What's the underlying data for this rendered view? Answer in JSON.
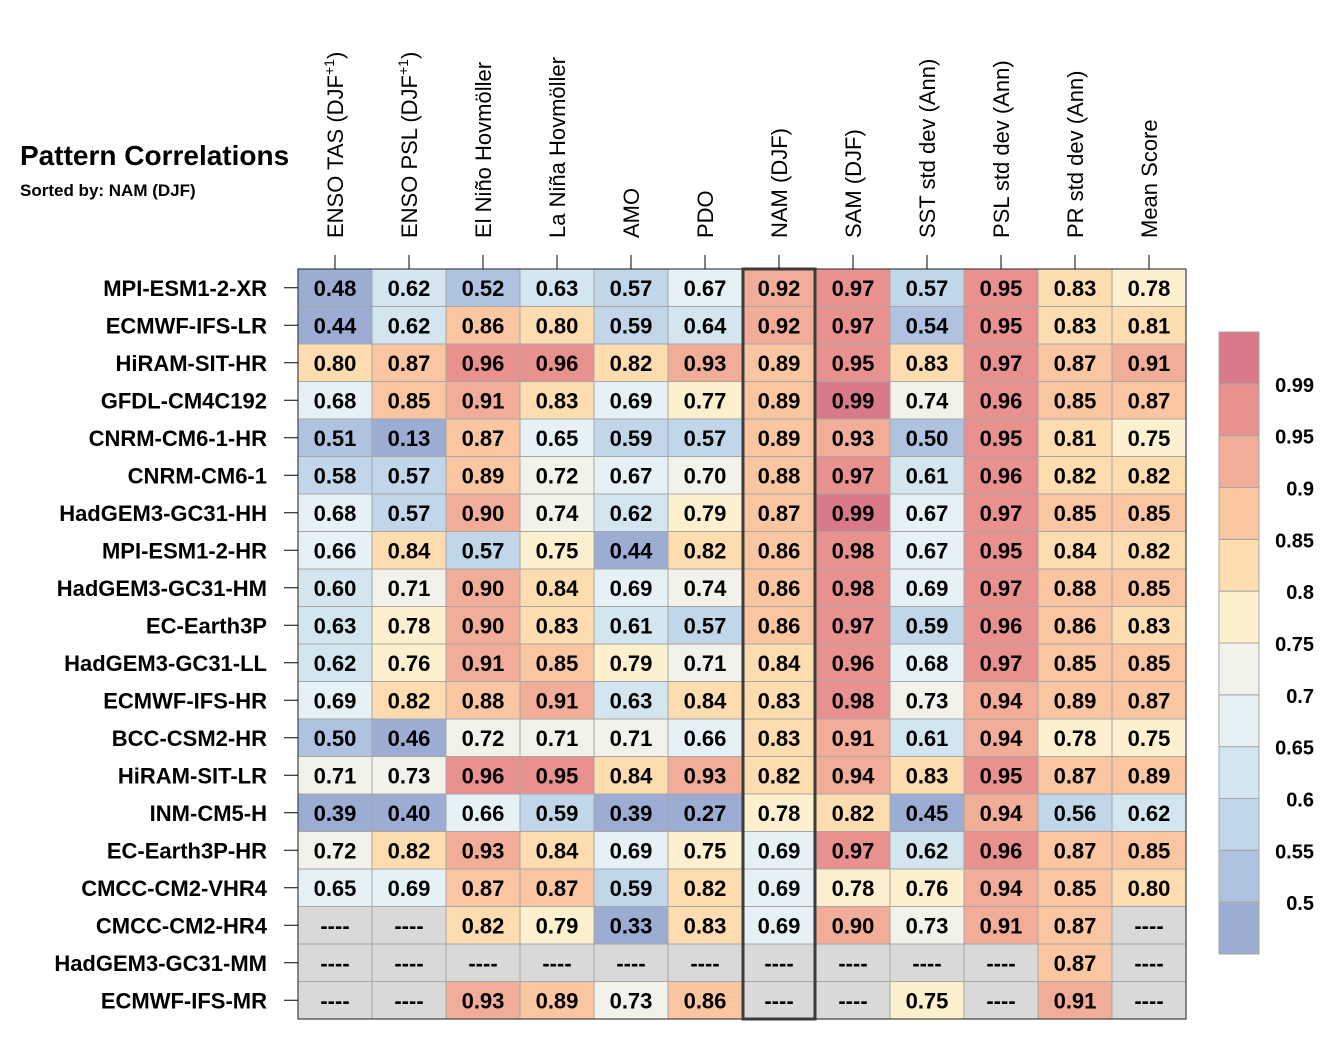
{
  "title": "Pattern Correlations",
  "subtitle": "Sorted by: NAM (DJF)",
  "chart_data": {
    "type": "heatmap",
    "title": "Pattern Correlations",
    "subtitle": "Sorted by: NAM (DJF)",
    "sorted_by": "NAM (DJF)",
    "highlighted_column": "NAM (DJF)",
    "missing_label": "----",
    "columns": [
      {
        "main": "ENSO TAS (DJF",
        "sup": "+1",
        "end": ")"
      },
      {
        "main": "ENSO PSL (DJF",
        "sup": "+1",
        "end": ")"
      },
      {
        "main": "El Niño Hovmöller",
        "sup": "",
        "end": ""
      },
      {
        "main": "La Niña Hovmöller",
        "sup": "",
        "end": ""
      },
      {
        "main": "AMO",
        "sup": "",
        "end": ""
      },
      {
        "main": "PDO",
        "sup": "",
        "end": ""
      },
      {
        "main": "NAM (DJF)",
        "sup": "",
        "end": ""
      },
      {
        "main": "SAM (DJF)",
        "sup": "",
        "end": ""
      },
      {
        "main": "SST std dev (Ann)",
        "sup": "",
        "end": ""
      },
      {
        "main": "PSL std dev (Ann)",
        "sup": "",
        "end": ""
      },
      {
        "main": "PR std dev (Ann)",
        "sup": "",
        "end": ""
      },
      {
        "main": "Mean Score",
        "sup": "",
        "end": ""
      }
    ],
    "rows": [
      "MPI-ESM1-2-XR",
      "ECMWF-IFS-LR",
      "HiRAM-SIT-HR",
      "GFDL-CM4C192",
      "CNRM-CM6-1-HR",
      "CNRM-CM6-1",
      "HadGEM3-GC31-HH",
      "MPI-ESM1-2-HR",
      "HadGEM3-GC31-HM",
      "EC-Earth3P",
      "HadGEM3-GC31-LL",
      "ECMWF-IFS-HR",
      "BCC-CSM2-HR",
      "HiRAM-SIT-LR",
      "INM-CM5-H",
      "EC-Earth3P-HR",
      "CMCC-CM2-VHR4",
      "CMCC-CM2-HR4",
      "HadGEM3-GC31-MM",
      "ECMWF-IFS-MR"
    ],
    "values": [
      [
        "0.48",
        "0.62",
        "0.52",
        "0.63",
        "0.57",
        "0.67",
        "0.92",
        "0.97",
        "0.57",
        "0.95",
        "0.83",
        "0.78"
      ],
      [
        "0.44",
        "0.62",
        "0.86",
        "0.80",
        "0.59",
        "0.64",
        "0.92",
        "0.97",
        "0.54",
        "0.95",
        "0.83",
        "0.81"
      ],
      [
        "0.80",
        "0.87",
        "0.96",
        "0.96",
        "0.82",
        "0.93",
        "0.89",
        "0.95",
        "0.83",
        "0.97",
        "0.87",
        "0.91"
      ],
      [
        "0.68",
        "0.85",
        "0.91",
        "0.83",
        "0.69",
        "0.77",
        "0.89",
        "0.99",
        "0.74",
        "0.96",
        "0.85",
        "0.87"
      ],
      [
        "0.51",
        "0.13",
        "0.87",
        "0.65",
        "0.59",
        "0.57",
        "0.89",
        "0.93",
        "0.50",
        "0.95",
        "0.81",
        "0.75"
      ],
      [
        "0.58",
        "0.57",
        "0.89",
        "0.72",
        "0.67",
        "0.70",
        "0.88",
        "0.97",
        "0.61",
        "0.96",
        "0.82",
        "0.82"
      ],
      [
        "0.68",
        "0.57",
        "0.90",
        "0.74",
        "0.62",
        "0.79",
        "0.87",
        "0.99",
        "0.67",
        "0.97",
        "0.85",
        "0.85"
      ],
      [
        "0.66",
        "0.84",
        "0.57",
        "0.75",
        "0.44",
        "0.82",
        "0.86",
        "0.98",
        "0.67",
        "0.95",
        "0.84",
        "0.82"
      ],
      [
        "0.60",
        "0.71",
        "0.90",
        "0.84",
        "0.69",
        "0.74",
        "0.86",
        "0.98",
        "0.69",
        "0.97",
        "0.88",
        "0.85"
      ],
      [
        "0.63",
        "0.78",
        "0.90",
        "0.83",
        "0.61",
        "0.57",
        "0.86",
        "0.97",
        "0.59",
        "0.96",
        "0.86",
        "0.83"
      ],
      [
        "0.62",
        "0.76",
        "0.91",
        "0.85",
        "0.79",
        "0.71",
        "0.84",
        "0.96",
        "0.68",
        "0.97",
        "0.85",
        "0.85"
      ],
      [
        "0.69",
        "0.82",
        "0.88",
        "0.91",
        "0.63",
        "0.84",
        "0.83",
        "0.98",
        "0.73",
        "0.94",
        "0.89",
        "0.87"
      ],
      [
        "0.50",
        "0.46",
        "0.72",
        "0.71",
        "0.71",
        "0.66",
        "0.83",
        "0.91",
        "0.61",
        "0.94",
        "0.78",
        "0.75"
      ],
      [
        "0.71",
        "0.73",
        "0.96",
        "0.95",
        "0.84",
        "0.93",
        "0.82",
        "0.94",
        "0.83",
        "0.95",
        "0.87",
        "0.89"
      ],
      [
        "0.39",
        "0.40",
        "0.66",
        "0.59",
        "0.39",
        "0.27",
        "0.78",
        "0.82",
        "0.45",
        "0.94",
        "0.56",
        "0.62"
      ],
      [
        "0.72",
        "0.82",
        "0.93",
        "0.84",
        "0.69",
        "0.75",
        "0.69",
        "0.97",
        "0.62",
        "0.96",
        "0.87",
        "0.85"
      ],
      [
        "0.65",
        "0.69",
        "0.87",
        "0.87",
        "0.59",
        "0.82",
        "0.69",
        "0.78",
        "0.76",
        "0.94",
        "0.85",
        "0.80"
      ],
      [
        null,
        null,
        "0.82",
        "0.79",
        "0.33",
        "0.83",
        "0.69",
        "0.90",
        "0.73",
        "0.91",
        "0.87",
        null
      ],
      [
        null,
        null,
        null,
        null,
        null,
        null,
        null,
        null,
        null,
        null,
        "0.87",
        null
      ],
      [
        null,
        null,
        "0.93",
        "0.89",
        "0.73",
        "0.86",
        null,
        null,
        "0.75",
        null,
        "0.91",
        null
      ]
    ],
    "colorbar": {
      "bounds": [
        0.5,
        0.55,
        0.6,
        0.65,
        0.7,
        0.75,
        0.8,
        0.85,
        0.9,
        0.95,
        0.99
      ],
      "labels": [
        "0.5",
        "0.55",
        "0.6",
        "0.65",
        "0.7",
        "0.75",
        "0.8",
        "0.85",
        "0.9",
        "0.95",
        "0.99"
      ],
      "colors": [
        "#9dacd3",
        "#afc2df",
        "#c1d7e9",
        "#d3e6f0",
        "#e5f1f5",
        "#f2f2ea",
        "#fcf0ce",
        "#fddcb0",
        "#f9c6a1",
        "#f1ad97",
        "#e8918f",
        "#d97a88"
      ],
      "missing_color": "#d9d9d9",
      "placement": "right"
    }
  }
}
